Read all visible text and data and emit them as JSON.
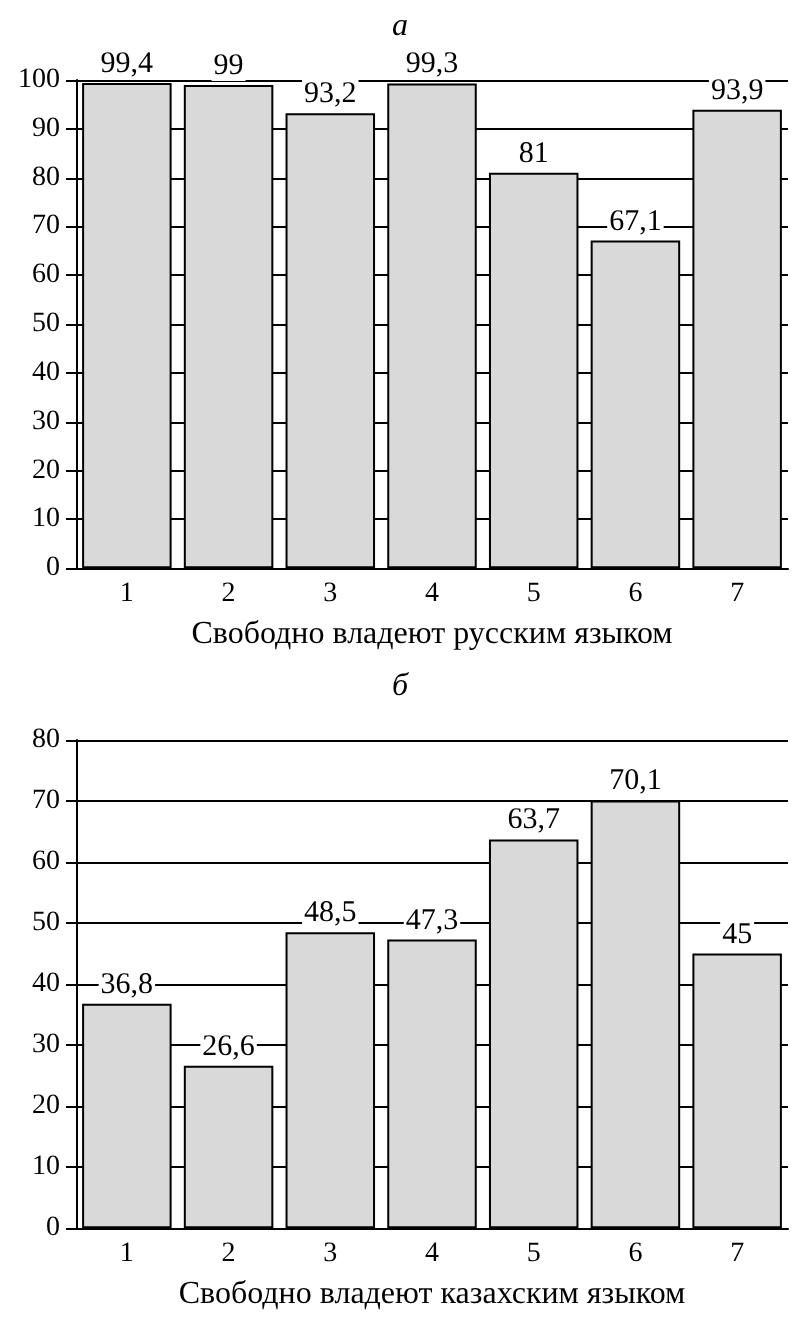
{
  "chart_data": [
    {
      "type": "bar",
      "title": "а",
      "xlabel": "Свободно владеют русским языком",
      "categories": [
        "1",
        "2",
        "3",
        "4",
        "5",
        "6",
        "7"
      ],
      "values": [
        99.4,
        99,
        93.2,
        99.3,
        81,
        67.1,
        93.9
      ],
      "value_labels": [
        "99,4",
        "99",
        "93,2",
        "99,3",
        "81",
        "67,1",
        "93,9"
      ],
      "color": "#d9d9d9",
      "ylim": [
        0,
        100
      ],
      "yticks": [
        0,
        10,
        20,
        30,
        40,
        50,
        60,
        70,
        80,
        90,
        100
      ],
      "grid": "y"
    },
    {
      "type": "bar",
      "title": "б",
      "xlabel": "Свободно владеют казахским языком",
      "categories": [
        "1",
        "2",
        "3",
        "4",
        "5",
        "6",
        "7"
      ],
      "values": [
        36.8,
        26.6,
        48.5,
        47.3,
        63.7,
        70.1,
        45
      ],
      "value_labels": [
        "36,8",
        "26,6",
        "48,5",
        "47,3",
        "63,7",
        "70,1",
        "45"
      ],
      "color": "#d9d9d9",
      "ylim": [
        0,
        80
      ],
      "yticks": [
        0,
        10,
        20,
        30,
        40,
        50,
        60,
        70,
        80
      ],
      "grid": "y"
    }
  ]
}
